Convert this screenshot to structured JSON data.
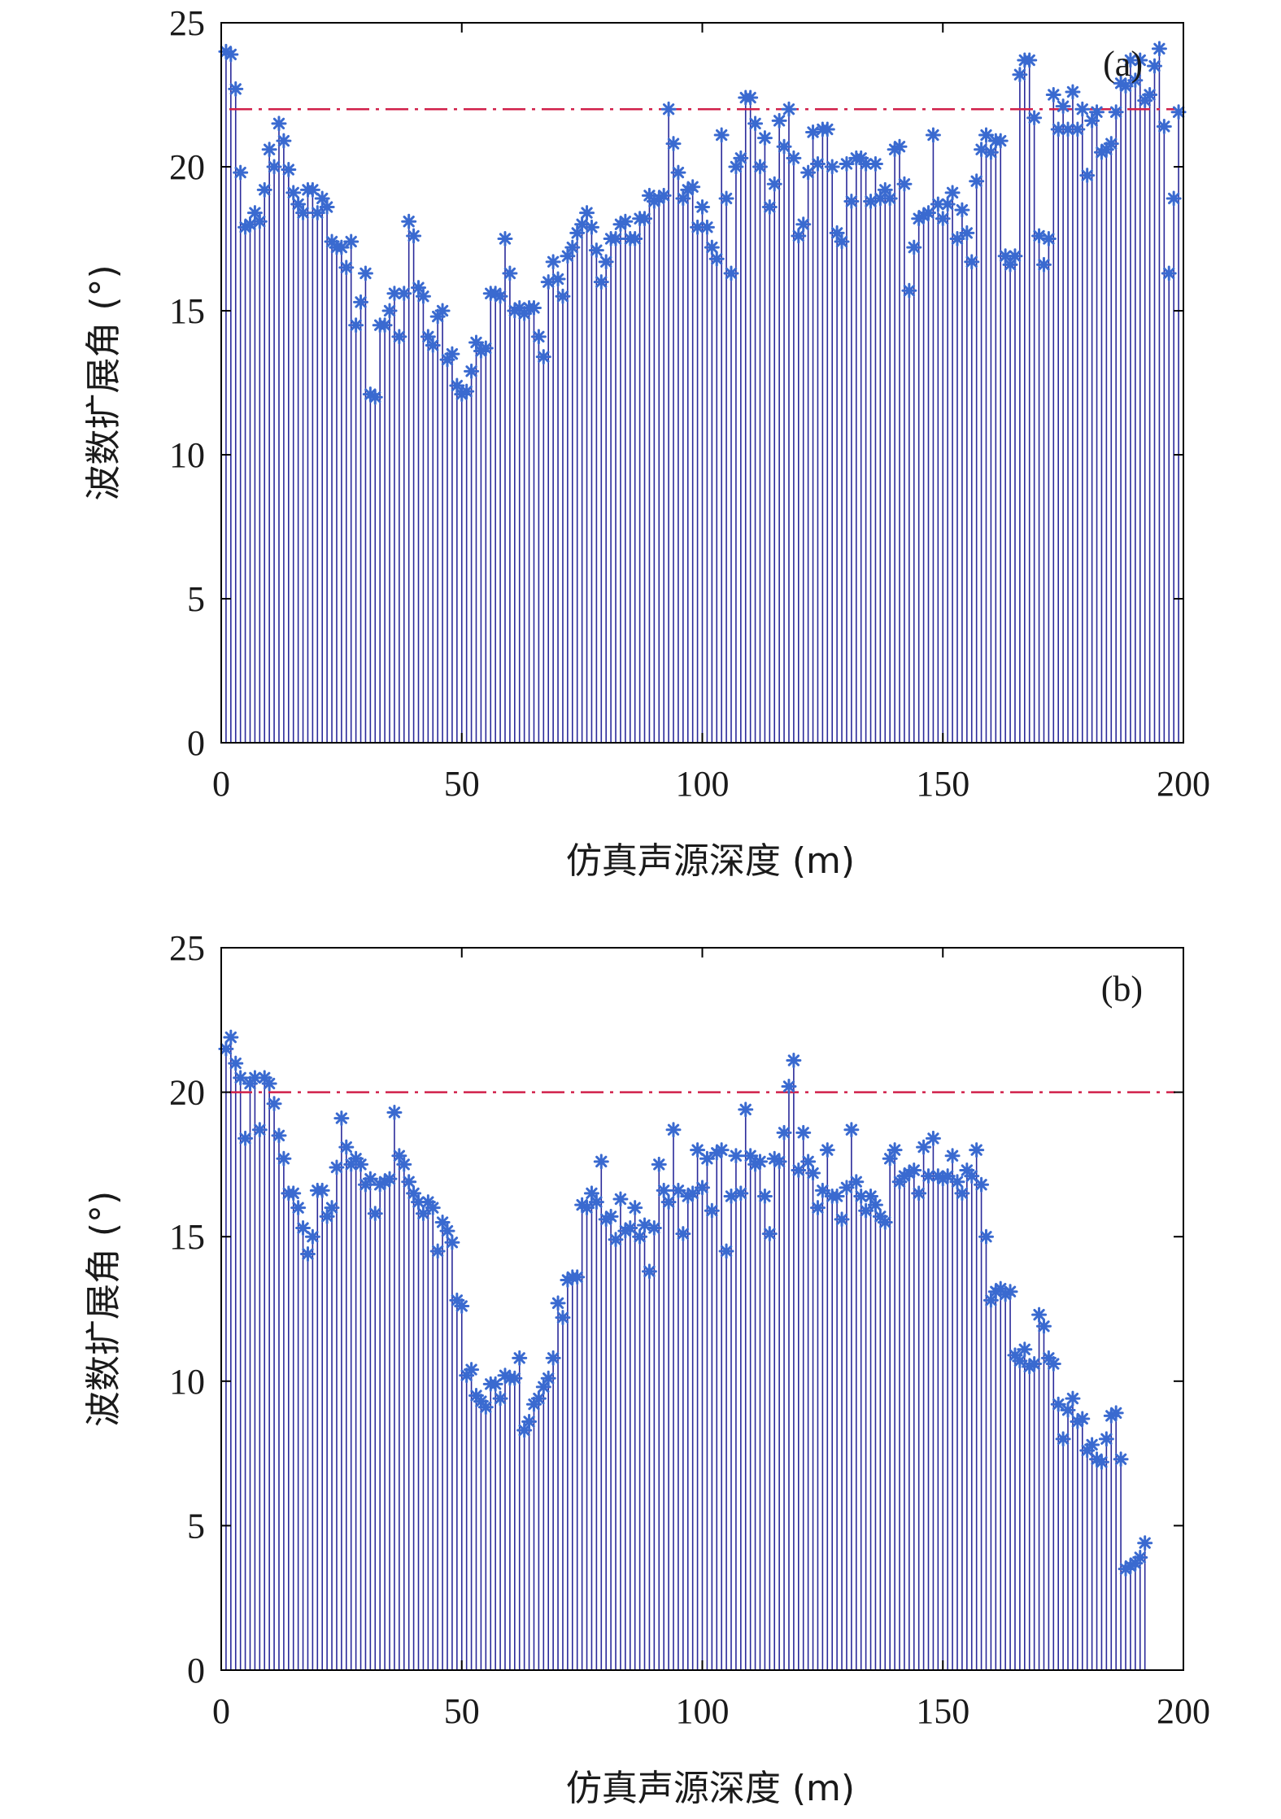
{
  "chart_data": [
    {
      "type": "stem",
      "panel_label": "(a)",
      "xlabel": "仿真声源深度 (m)",
      "ylabel": "波数扩展角 (°)",
      "xlim": [
        0,
        200
      ],
      "ylim": [
        0,
        25
      ],
      "x_ticks": [
        0,
        50,
        100,
        150,
        200
      ],
      "y_ticks": [
        0,
        5,
        10,
        15,
        20,
        25
      ],
      "threshold": 22,
      "x_start": 1,
      "x_step": 1,
      "stem_color": "#2a2a9a",
      "marker_color": "#3a6ad0",
      "threshold_color": "#d0204a",
      "values": [
        24.0,
        23.9,
        22.7,
        19.8,
        17.9,
        18.0,
        18.4,
        18.1,
        19.2,
        20.6,
        20.0,
        21.5,
        20.9,
        19.9,
        19.1,
        18.7,
        18.4,
        19.2,
        19.2,
        18.4,
        18.9,
        18.6,
        17.4,
        17.2,
        17.2,
        16.5,
        17.4,
        14.5,
        15.3,
        16.3,
        12.1,
        12.0,
        14.5,
        14.5,
        15.0,
        15.6,
        14.1,
        15.6,
        18.1,
        17.6,
        15.8,
        15.5,
        14.1,
        13.8,
        14.8,
        15.0,
        13.3,
        13.5,
        12.4,
        12.1,
        12.2,
        12.9,
        13.9,
        13.6,
        13.7,
        15.6,
        15.6,
        15.5,
        17.5,
        16.3,
        15.0,
        15.1,
        14.9,
        15.1,
        15.1,
        14.1,
        13.4,
        16.0,
        16.7,
        16.1,
        15.5,
        16.9,
        17.2,
        17.7,
        18.0,
        18.4,
        17.9,
        17.1,
        16.0,
        16.7,
        17.5,
        17.5,
        18.0,
        18.1,
        17.5,
        17.5,
        18.2,
        18.2,
        19.0,
        18.8,
        18.9,
        19.0,
        22.0,
        20.8,
        19.8,
        18.9,
        19.2,
        19.3,
        17.9,
        18.6,
        17.9,
        17.2,
        16.8,
        21.1,
        18.9,
        16.3,
        20.0,
        20.3,
        22.4,
        22.4,
        21.5,
        20.0,
        21.0,
        18.6,
        19.4,
        21.6,
        20.7,
        22.0,
        20.3,
        17.6,
        18.0,
        19.8,
        21.2,
        20.1,
        21.3,
        21.3,
        20.0,
        17.7,
        17.4,
        20.1,
        18.8,
        20.3,
        20.3,
        20.1,
        18.8,
        20.1,
        18.9,
        19.2,
        18.9,
        20.6,
        20.7,
        19.4,
        15.7,
        17.2,
        18.2,
        18.3,
        18.4,
        21.1,
        18.7,
        18.2,
        18.7,
        19.1,
        17.5,
        18.5,
        17.7,
        16.7,
        19.5,
        20.6,
        21.1,
        20.5,
        20.9,
        20.9,
        16.9,
        16.6,
        16.9,
        23.2,
        23.7,
        23.7,
        21.7,
        17.6,
        16.6,
        17.5,
        22.5,
        21.3,
        22.1,
        21.3,
        22.6,
        21.3,
        22.0,
        19.7,
        21.6,
        21.9,
        20.5,
        20.6,
        20.8,
        21.9,
        22.9,
        22.8,
        23.7,
        23.0,
        23.7,
        22.3,
        22.5,
        23.5,
        24.1,
        21.4,
        16.3,
        18.9,
        21.9
      ]
    },
    {
      "type": "stem",
      "panel_label": "(b)",
      "xlabel": "仿真声源深度 (m)",
      "ylabel": "波数扩展角 (°)",
      "xlim": [
        0,
        200
      ],
      "ylim": [
        0,
        25
      ],
      "x_ticks": [
        0,
        50,
        100,
        150,
        200
      ],
      "y_ticks": [
        0,
        5,
        10,
        15,
        20,
        25
      ],
      "threshold": 20,
      "x_start": 1,
      "x_step": 1,
      "stem_color": "#2a2a9a",
      "marker_color": "#3a6ad0",
      "threshold_color": "#d0204a",
      "values": [
        21.5,
        21.9,
        21.0,
        20.5,
        18.4,
        20.3,
        20.5,
        18.7,
        20.5,
        20.3,
        19.6,
        18.5,
        17.7,
        16.5,
        16.5,
        16.0,
        15.3,
        14.4,
        15.0,
        16.6,
        16.6,
        15.7,
        16.0,
        17.4,
        19.1,
        18.1,
        17.5,
        17.7,
        17.5,
        16.8,
        17.0,
        15.8,
        16.8,
        16.9,
        17.0,
        19.3,
        17.8,
        17.5,
        16.9,
        16.5,
        16.2,
        15.8,
        16.2,
        16.0,
        14.5,
        15.5,
        15.2,
        14.8,
        12.8,
        12.6,
        10.2,
        10.4,
        9.5,
        9.3,
        9.1,
        9.9,
        9.9,
        9.4,
        10.2,
        10.1,
        10.1,
        10.8,
        8.3,
        8.6,
        9.2,
        9.4,
        9.8,
        10.1,
        10.8,
        12.7,
        12.2,
        13.5,
        13.6,
        13.6,
        16.1,
        16.0,
        16.5,
        16.2,
        17.6,
        15.6,
        15.7,
        14.9,
        16.3,
        15.2,
        15.3,
        16.0,
        15.0,
        15.4,
        13.8,
        15.3,
        17.5,
        16.6,
        16.2,
        18.7,
        16.6,
        15.1,
        16.4,
        16.5,
        18.0,
        16.7,
        17.7,
        15.9,
        17.9,
        18.0,
        14.5,
        16.4,
        17.8,
        16.5,
        19.4,
        17.8,
        17.5,
        17.6,
        16.4,
        15.1,
        17.7,
        17.6,
        18.6,
        20.2,
        21.1,
        17.3,
        18.6,
        17.6,
        17.2,
        16.0,
        16.6,
        18.0,
        16.4,
        16.4,
        15.6,
        16.7,
        18.7,
        16.9,
        16.4,
        15.9,
        16.4,
        16.1,
        15.7,
        15.5,
        17.7,
        18.0,
        16.9,
        17.1,
        17.2,
        17.3,
        16.5,
        18.1,
        17.1,
        18.4,
        17.1,
        17.0,
        17.1,
        17.8,
        16.9,
        16.5,
        17.3,
        17.1,
        18.0,
        16.8,
        15.0,
        12.8,
        13.1,
        13.2,
        13.0,
        13.1,
        10.9,
        10.7,
        11.1,
        10.5,
        10.6,
        12.3,
        11.9,
        10.8,
        10.6,
        9.2,
        8.0,
        9.0,
        9.4,
        8.6,
        8.7,
        7.6,
        7.8,
        7.3,
        7.2,
        8.0,
        8.8,
        8.9,
        7.3,
        3.5,
        3.6,
        3.7,
        3.9,
        4.4
      ]
    }
  ]
}
